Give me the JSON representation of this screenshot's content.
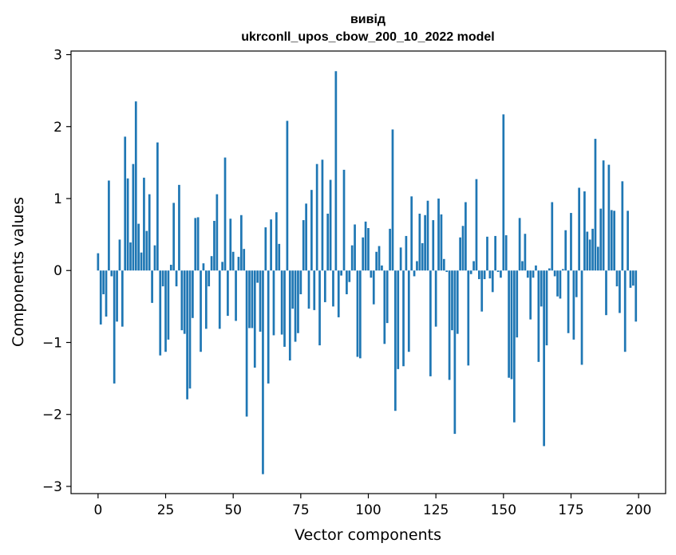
{
  "chart_data": {
    "type": "bar",
    "title_line1": "вивід",
    "title_line2": "ukrconll_upos_cbow_200_10_2022 model",
    "xlabel": "Vector components",
    "ylabel": "Components values",
    "xlim": [
      -10,
      210
    ],
    "ylim": [
      -3.1,
      3.05
    ],
    "xticks": [
      0,
      25,
      50,
      75,
      100,
      125,
      150,
      175,
      200
    ],
    "yticks": [
      -3,
      -2,
      -1,
      0,
      1,
      2,
      3
    ],
    "ytick_labels": [
      "−3",
      "−2",
      "−1",
      "0",
      "1",
      "2",
      "3"
    ],
    "color": "#1f77b4",
    "grid": false,
    "values": [
      0.24,
      -0.75,
      -0.33,
      -0.64,
      1.25,
      -0.08,
      -1.57,
      -0.71,
      0.43,
      -0.78,
      1.86,
      1.28,
      0.39,
      1.48,
      2.35,
      0.65,
      0.25,
      1.29,
      0.55,
      1.06,
      -0.45,
      0.35,
      1.78,
      -1.18,
      -0.22,
      -1.13,
      -0.96,
      0.08,
      0.94,
      -0.22,
      1.19,
      -0.83,
      -0.88,
      -1.79,
      -1.64,
      -0.66,
      0.73,
      0.74,
      -1.13,
      0.1,
      -0.81,
      -0.22,
      0.2,
      0.69,
      1.06,
      -0.81,
      0.12,
      1.57,
      -0.63,
      0.72,
      0.26,
      -0.7,
      0.19,
      0.77,
      0.3,
      -2.03,
      -0.8,
      -0.8,
      -1.35,
      -0.17,
      -0.85,
      -2.83,
      0.6,
      -1.57,
      0.71,
      -0.9,
      0.81,
      0.37,
      -0.89,
      -1.06,
      2.08,
      -1.25,
      -0.53,
      -0.99,
      -0.87,
      -0.33,
      0.7,
      0.93,
      -0.53,
      1.12,
      -0.55,
      1.48,
      -1.04,
      1.54,
      -0.44,
      0.79,
      1.26,
      -0.5,
      2.77,
      -0.65,
      -0.07,
      1.4,
      -0.33,
      -0.16,
      0.35,
      0.64,
      -1.2,
      -1.22,
      0.46,
      0.68,
      0.59,
      -0.1,
      -0.47,
      0.26,
      0.34,
      0.07,
      -1.02,
      -0.73,
      0.58,
      1.96,
      -1.95,
      -1.37,
      0.32,
      -1.33,
      0.48,
      -1.13,
      1.03,
      -0.08,
      0.13,
      0.79,
      0.38,
      0.77,
      0.97,
      -1.47,
      0.7,
      -0.78,
      1.0,
      0.78,
      0.16,
      -0.02,
      -1.52,
      -0.83,
      -2.27,
      -0.88,
      0.46,
      0.62,
      0.95,
      -1.32,
      -0.05,
      0.13,
      1.27,
      -0.12,
      -0.57,
      -0.12,
      0.47,
      -0.11,
      -0.3,
      0.48,
      -0.02,
      -0.1,
      2.17,
      0.49,
      -1.49,
      -1.51,
      -2.11,
      -0.93,
      0.73,
      0.13,
      0.51,
      -0.1,
      -0.68,
      -0.1,
      0.07,
      -1.27,
      -0.5,
      -2.44,
      -1.04,
      0.03,
      0.95,
      -0.08,
      -0.36,
      -0.39,
      0.02,
      0.56,
      -0.87,
      0.8,
      -0.96,
      -0.37,
      1.15,
      -1.31,
      1.1,
      0.54,
      0.43,
      0.58,
      1.83,
      0.33,
      0.86,
      1.53,
      -0.62,
      1.47,
      0.84,
      0.83,
      -0.22,
      -0.59,
      1.24,
      -1.13,
      0.83,
      -0.24,
      -0.21,
      -0.71
    ]
  }
}
